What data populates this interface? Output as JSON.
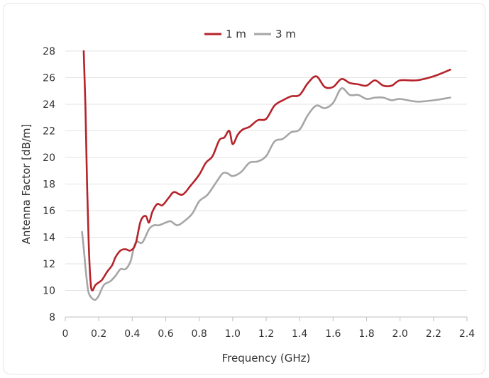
{
  "chart_data": {
    "type": "line",
    "title": "",
    "xlabel": "Frequency (GHz)",
    "ylabel": "Antenna Factor [dB/m]",
    "xlim": [
      0,
      2.4
    ],
    "ylim": [
      8,
      28
    ],
    "x_ticks": [
      "0",
      "0.2",
      "0.4",
      "0.6",
      "0.8",
      "1.0",
      "1.2",
      "1.4",
      "1.6",
      "1.8",
      "2.0",
      "2.2",
      "2.4"
    ],
    "y_ticks": [
      "8",
      "10",
      "12",
      "14",
      "16",
      "18",
      "20",
      "22",
      "24",
      "26",
      "28"
    ],
    "grid": "horizontal",
    "legend_position": "top-center",
    "series": [
      {
        "name": "1 m",
        "color": "#b5232b",
        "points": [
          [
            0.11,
            28.0
          ],
          [
            0.12,
            24.0
          ],
          [
            0.13,
            18.0
          ],
          [
            0.14,
            13.5
          ],
          [
            0.15,
            10.8
          ],
          [
            0.16,
            10.0
          ],
          [
            0.18,
            10.4
          ],
          [
            0.2,
            10.6
          ],
          [
            0.22,
            10.8
          ],
          [
            0.25,
            11.4
          ],
          [
            0.28,
            11.9
          ],
          [
            0.3,
            12.5
          ],
          [
            0.33,
            13.0
          ],
          [
            0.36,
            13.1
          ],
          [
            0.39,
            13.0
          ],
          [
            0.42,
            13.5
          ],
          [
            0.45,
            15.2
          ],
          [
            0.48,
            15.6
          ],
          [
            0.5,
            15.1
          ],
          [
            0.52,
            15.9
          ],
          [
            0.55,
            16.5
          ],
          [
            0.58,
            16.4
          ],
          [
            0.62,
            17.0
          ],
          [
            0.65,
            17.4
          ],
          [
            0.7,
            17.2
          ],
          [
            0.75,
            17.9
          ],
          [
            0.8,
            18.7
          ],
          [
            0.84,
            19.6
          ],
          [
            0.88,
            20.1
          ],
          [
            0.92,
            21.3
          ],
          [
            0.95,
            21.5
          ],
          [
            0.98,
            22.0
          ],
          [
            1.0,
            21.0
          ],
          [
            1.03,
            21.7
          ],
          [
            1.06,
            22.1
          ],
          [
            1.1,
            22.3
          ],
          [
            1.15,
            22.8
          ],
          [
            1.2,
            22.9
          ],
          [
            1.25,
            23.9
          ],
          [
            1.3,
            24.3
          ],
          [
            1.35,
            24.6
          ],
          [
            1.4,
            24.7
          ],
          [
            1.45,
            25.6
          ],
          [
            1.5,
            26.1
          ],
          [
            1.55,
            25.3
          ],
          [
            1.6,
            25.3
          ],
          [
            1.65,
            25.9
          ],
          [
            1.7,
            25.6
          ],
          [
            1.75,
            25.5
          ],
          [
            1.8,
            25.4
          ],
          [
            1.85,
            25.8
          ],
          [
            1.9,
            25.4
          ],
          [
            1.95,
            25.4
          ],
          [
            2.0,
            25.8
          ],
          [
            2.1,
            25.8
          ],
          [
            2.2,
            26.1
          ],
          [
            2.3,
            26.6
          ]
        ]
      },
      {
        "name": "3 m",
        "color": "#a6a6a6",
        "points": [
          [
            0.1,
            14.4
          ],
          [
            0.11,
            13.2
          ],
          [
            0.12,
            11.8
          ],
          [
            0.13,
            10.6
          ],
          [
            0.14,
            9.8
          ],
          [
            0.16,
            9.4
          ],
          [
            0.18,
            9.3
          ],
          [
            0.2,
            9.6
          ],
          [
            0.23,
            10.4
          ],
          [
            0.27,
            10.7
          ],
          [
            0.3,
            11.1
          ],
          [
            0.33,
            11.6
          ],
          [
            0.36,
            11.6
          ],
          [
            0.39,
            12.2
          ],
          [
            0.42,
            13.6
          ],
          [
            0.46,
            13.6
          ],
          [
            0.5,
            14.6
          ],
          [
            0.53,
            14.9
          ],
          [
            0.56,
            14.9
          ],
          [
            0.6,
            15.1
          ],
          [
            0.63,
            15.2
          ],
          [
            0.67,
            14.9
          ],
          [
            0.72,
            15.3
          ],
          [
            0.76,
            15.8
          ],
          [
            0.8,
            16.7
          ],
          [
            0.85,
            17.2
          ],
          [
            0.9,
            18.1
          ],
          [
            0.94,
            18.8
          ],
          [
            0.97,
            18.8
          ],
          [
            1.0,
            18.6
          ],
          [
            1.05,
            18.9
          ],
          [
            1.1,
            19.6
          ],
          [
            1.15,
            19.7
          ],
          [
            1.2,
            20.1
          ],
          [
            1.25,
            21.2
          ],
          [
            1.3,
            21.4
          ],
          [
            1.35,
            21.9
          ],
          [
            1.4,
            22.1
          ],
          [
            1.45,
            23.2
          ],
          [
            1.5,
            23.9
          ],
          [
            1.55,
            23.7
          ],
          [
            1.6,
            24.1
          ],
          [
            1.65,
            25.2
          ],
          [
            1.7,
            24.7
          ],
          [
            1.75,
            24.7
          ],
          [
            1.8,
            24.4
          ],
          [
            1.85,
            24.5
          ],
          [
            1.9,
            24.5
          ],
          [
            1.95,
            24.3
          ],
          [
            2.0,
            24.4
          ],
          [
            2.1,
            24.2
          ],
          [
            2.2,
            24.3
          ],
          [
            2.3,
            24.5
          ]
        ]
      }
    ]
  }
}
